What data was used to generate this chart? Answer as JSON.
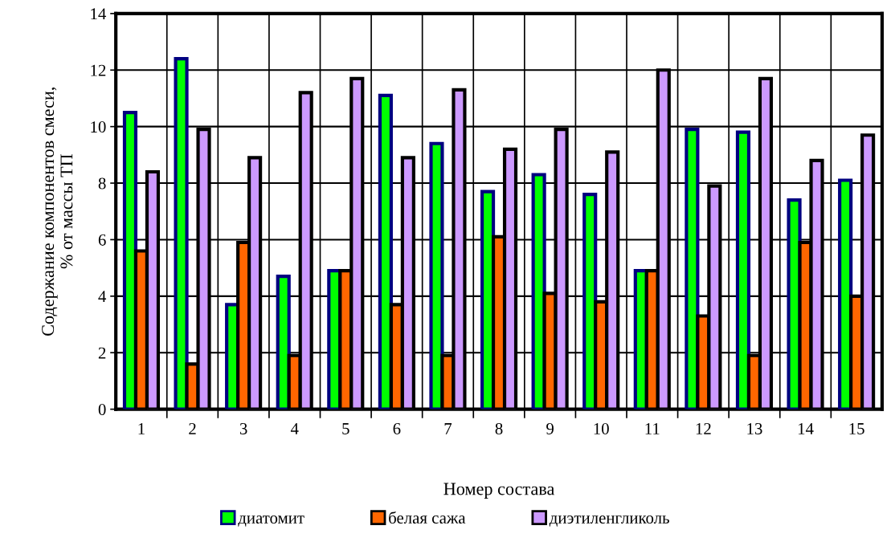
{
  "chart_data": {
    "type": "bar",
    "xlabel": "Номер состава",
    "ylabel": "Содержание компонентов смеси,\n% от массы ТП",
    "categories": [
      "1",
      "2",
      "3",
      "4",
      "5",
      "6",
      "7",
      "8",
      "9",
      "10",
      "11",
      "12",
      "13",
      "14",
      "15"
    ],
    "series": [
      {
        "name": "диатомит",
        "color": "#00ff00",
        "values": [
          10.5,
          12.4,
          3.7,
          4.7,
          4.9,
          11.1,
          9.4,
          7.7,
          8.3,
          7.6,
          4.9,
          9.9,
          9.8,
          7.4,
          8.1
        ]
      },
      {
        "name": "белая сажа",
        "color": "#ff6600",
        "values": [
          5.6,
          1.6,
          5.9,
          1.9,
          4.9,
          3.7,
          1.9,
          6.1,
          4.1,
          3.8,
          4.9,
          3.3,
          1.9,
          5.9,
          4.0
        ]
      },
      {
        "name": "диэтиленгликоль",
        "color": "#cc99ff",
        "values": [
          8.4,
          9.9,
          8.9,
          11.2,
          11.7,
          8.9,
          11.3,
          9.2,
          9.9,
          9.1,
          12.0,
          7.9,
          11.7,
          8.8,
          9.7
        ]
      }
    ],
    "ylim": [
      0,
      14
    ],
    "yticks": [
      0,
      2,
      4,
      6,
      8,
      10,
      12,
      14
    ],
    "grid": true,
    "legend": "bottom"
  }
}
